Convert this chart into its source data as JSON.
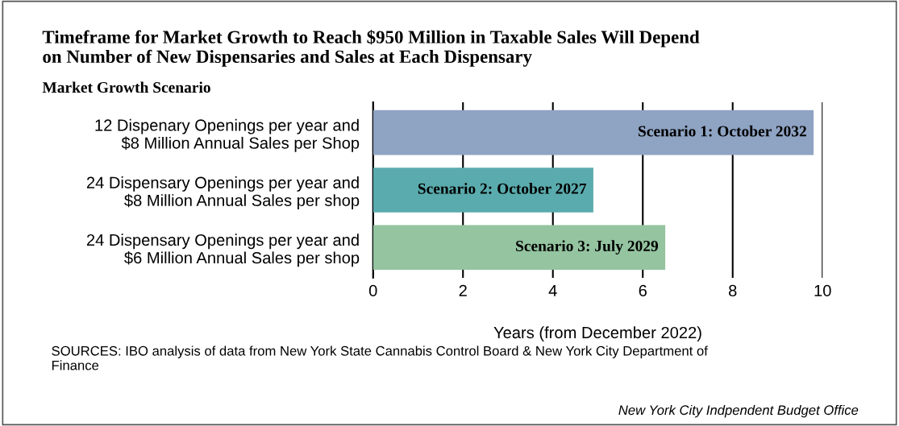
{
  "chart_data": {
    "type": "bar",
    "orientation": "horizontal",
    "title": "Timeframe for Market Growth to Reach $950 Million in Taxable Sales Will Depend\non Number of New Dispensaries and Sales at Each Dispensary",
    "ylabel": "Market Growth Scenario",
    "xlabel": "Years (from December 2022)",
    "categories": [
      "12 Dispenary Openings per year and\n$8 Million Annual Sales per Shop",
      "24 Dispensary Openings per year and\n$8 Million Annual Sales per shop",
      "24 Dispensary Openings per year and\n$6 Million Annual Sales per shop"
    ],
    "values": [
      9.8,
      4.9,
      6.5
    ],
    "colors": [
      "#8fa3c3",
      "#5aabad",
      "#94c4a0"
    ],
    "value_labels": [
      "Scenario 1: October 2032",
      "Scenario 2: October 2027",
      "Scenario 3: July 2029"
    ],
    "xlim": [
      0,
      10
    ],
    "xticks": [
      0,
      2,
      4,
      6,
      8,
      10
    ],
    "grid": "x",
    "annotations": [
      "SOURCES: IBO analysis of data from New York State Cannabis Control Board & New York City Department of\nFinance",
      "New York City Indpendent Budget Office"
    ]
  }
}
